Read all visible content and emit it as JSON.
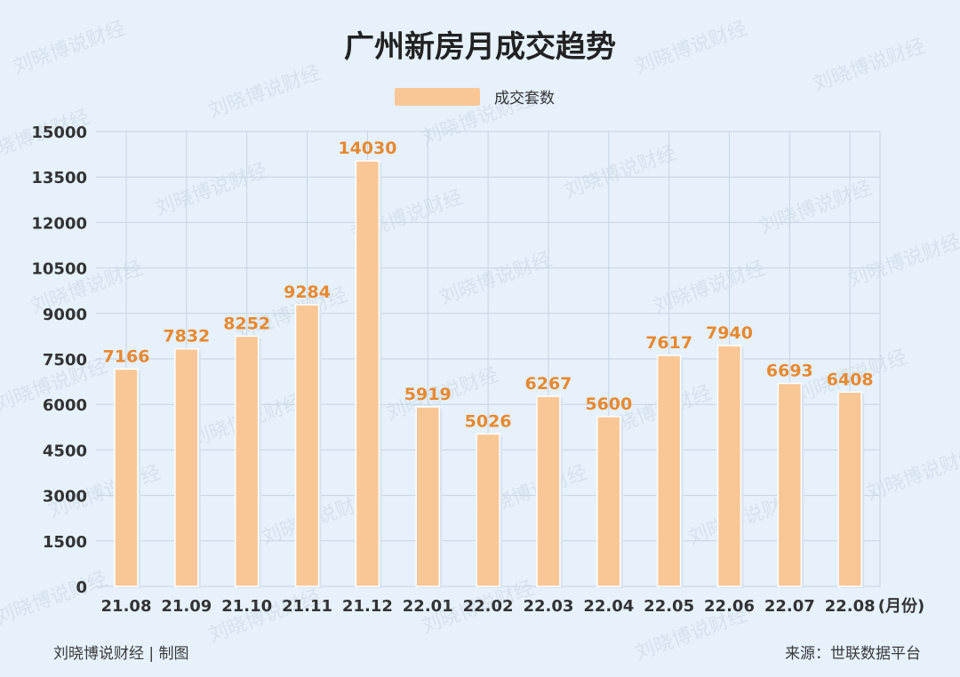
{
  "chart_data": {
    "type": "bar",
    "title": "广州新房月成交趋势",
    "categories": [
      "21.08",
      "21.09",
      "21.10",
      "21.11",
      "21.12",
      "22.01",
      "22.02",
      "22.03",
      "22.04",
      "22.05",
      "22.06",
      "22.07",
      "22.08"
    ],
    "series": [
      {
        "name": "成交套数",
        "values": [
          7166,
          7832,
          8252,
          9284,
          14030,
          5919,
          5026,
          6267,
          5600,
          7617,
          7940,
          6693,
          6408
        ]
      }
    ],
    "x_unit_label": "(月份)",
    "ylim": [
      0,
      15000
    ],
    "yticks": [
      0,
      1500,
      3000,
      4500,
      6000,
      7500,
      9000,
      10500,
      12000,
      13500,
      15000
    ],
    "grid": true,
    "legend_position": "top-center",
    "data_labels": true
  },
  "colors": {
    "background": "#e6f1fb",
    "bar_fill": "#f9c796",
    "bar_shadow": "#d7e3ef",
    "data_label": "#e8892f",
    "grid": "#c6d4e2",
    "axis_text": "#333333",
    "title": "#222222"
  },
  "footer": {
    "left": "刘晓博说财经 | 制图",
    "right": "来源：世联数据平台"
  },
  "watermark": "刘晓博说财经"
}
